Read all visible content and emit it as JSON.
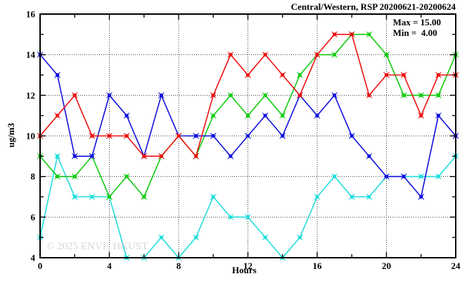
{
  "title": "Central/Western, RSP 20200621-20200624",
  "legend": {
    "max_label": "Max = 15.00",
    "min_label": "Min =  4.00"
  },
  "watermark": "© 2025 ENVF, HKUST",
  "chart_data": {
    "type": "line",
    "title": "Central/Western, RSP 20200621-20200624",
    "xlabel": "Hours",
    "ylabel": "ug/m3",
    "xlim": [
      0,
      24
    ],
    "ylim": [
      4,
      16
    ],
    "xticks_major": [
      0,
      4,
      8,
      12,
      16,
      20,
      24
    ],
    "xticks_minor": [
      2,
      6,
      10,
      14,
      18,
      22
    ],
    "yticks_major": [
      4,
      6,
      8,
      10,
      12,
      14,
      16
    ],
    "yticks_minor": [
      5,
      7,
      9,
      11,
      13,
      15
    ],
    "grid": true,
    "legend_position": "top-right-inside",
    "max": 15.0,
    "min": 4.0,
    "x": [
      0,
      1,
      2,
      3,
      4,
      5,
      6,
      7,
      8,
      9,
      10,
      11,
      12,
      13,
      14,
      15,
      16,
      17,
      18,
      19,
      20,
      21,
      22,
      23,
      24
    ],
    "series": [
      {
        "name": "series-cyan",
        "color": "#22dddd",
        "values": [
          5,
          9,
          7,
          7,
          7,
          4,
          4,
          5,
          4,
          5,
          7,
          6,
          6,
          5,
          4,
          5,
          7,
          8,
          7,
          7,
          8,
          8,
          8,
          8,
          9
        ]
      },
      {
        "name": "series-green",
        "color": "#11cc11",
        "values": [
          9,
          8,
          8,
          9,
          7,
          8,
          7,
          9,
          10,
          9,
          11,
          12,
          11,
          12,
          11,
          13,
          14,
          14,
          15,
          15,
          14,
          12,
          12,
          12,
          14
        ]
      },
      {
        "name": "series-blue",
        "color": "#1111dd",
        "values": [
          14,
          13,
          9,
          9,
          12,
          11,
          9,
          12,
          10,
          10,
          10,
          9,
          10,
          11,
          10,
          12,
          11,
          12,
          10,
          9,
          8,
          8,
          7,
          11,
          10
        ]
      },
      {
        "name": "series-red",
        "color": "#ee1111",
        "values": [
          10,
          11,
          12,
          10,
          10,
          10,
          9,
          9,
          10,
          9,
          12,
          14,
          13,
          14,
          13,
          12,
          14,
          15,
          15,
          12,
          13,
          13,
          11,
          13,
          13
        ]
      }
    ]
  },
  "colors": {
    "grid": "#333333",
    "border": "#000000",
    "watermark": "#d8d8d8"
  }
}
